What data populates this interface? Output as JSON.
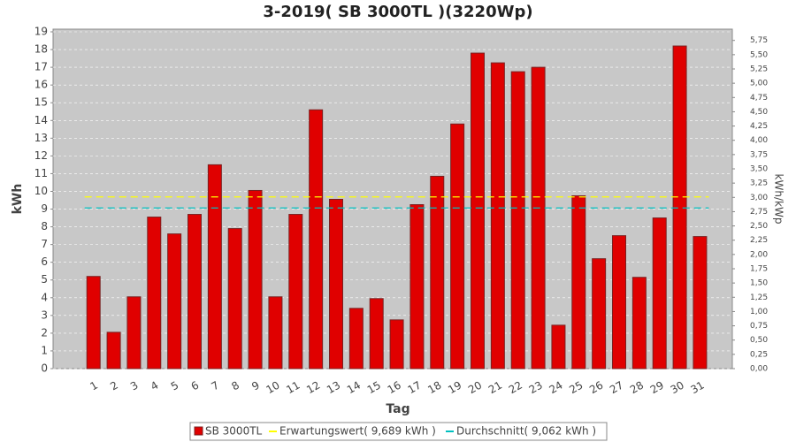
{
  "chart_data": {
    "type": "bar",
    "title": "3-2019( SB 3000TL )(3220Wp)",
    "x_label": "Tag",
    "y_label": "kWh",
    "y2_label": "kWh/kWp",
    "categories": [
      "1",
      "2",
      "3",
      "4",
      "5",
      "6",
      "7",
      "8",
      "9",
      "10",
      "11",
      "12",
      "13",
      "14",
      "15",
      "16",
      "17",
      "18",
      "19",
      "20",
      "21",
      "22",
      "23",
      "24",
      "25",
      "26",
      "27",
      "28",
      "29",
      "30",
      "31"
    ],
    "series": [
      {
        "name": "SB 3000TL",
        "color": "#e00000",
        "values": [
          5.2,
          2.05,
          4.05,
          8.55,
          7.6,
          8.7,
          11.5,
          7.9,
          10.05,
          4.05,
          8.7,
          14.6,
          9.55,
          3.4,
          3.95,
          2.75,
          9.25,
          10.85,
          13.8,
          17.8,
          17.25,
          16.75,
          17.0,
          2.45,
          9.75,
          6.2,
          7.5,
          5.15,
          8.5,
          18.2,
          7.45
        ]
      }
    ],
    "reference_lines": [
      {
        "name": "Erwartungswert( 9,689 kWh )",
        "value": 9.689,
        "color": "#ffff00"
      },
      {
        "name": "Durchschnitt( 9,062 kWh )",
        "value": 9.062,
        "color": "#00c0c0"
      }
    ],
    "ylim": [
      0,
      19.15
    ],
    "yticks": [
      0,
      1,
      2,
      3,
      4,
      5,
      6,
      7,
      8,
      9,
      10,
      11,
      12,
      13,
      14,
      15,
      16,
      17,
      18,
      19
    ],
    "y2lim": [
      0,
      5.947
    ],
    "y2ticks": [
      {
        "value": 0,
        "label": "0,00"
      },
      {
        "value": 0.25,
        "label": "0,25"
      },
      {
        "value": 0.5,
        "label": "0,50"
      },
      {
        "value": 0.75,
        "label": "0,75"
      },
      {
        "value": 1,
        "label": "1,00"
      },
      {
        "value": 1.25,
        "label": "1,25"
      },
      {
        "value": 1.5,
        "label": "1,50"
      },
      {
        "value": 1.75,
        "label": "1,75"
      },
      {
        "value": 2,
        "label": "2,00"
      },
      {
        "value": 2.25,
        "label": "2,25"
      },
      {
        "value": 2.5,
        "label": "2,50"
      },
      {
        "value": 2.75,
        "label": "2,75"
      },
      {
        "value": 3,
        "label": "3,00"
      },
      {
        "value": 3.25,
        "label": "3,25"
      },
      {
        "value": 3.5,
        "label": "3,50"
      },
      {
        "value": 3.75,
        "label": "3,75"
      },
      {
        "value": 4,
        "label": "4,00"
      },
      {
        "value": 4.25,
        "label": "4,25"
      },
      {
        "value": 4.5,
        "label": "4,50"
      },
      {
        "value": 4.75,
        "label": "4,75"
      },
      {
        "value": 5,
        "label": "5,00"
      },
      {
        "value": 5.25,
        "label": "5,25"
      },
      {
        "value": 5.5,
        "label": "5,50"
      },
      {
        "value": 5.75,
        "label": "5,75"
      }
    ],
    "grid": true
  }
}
